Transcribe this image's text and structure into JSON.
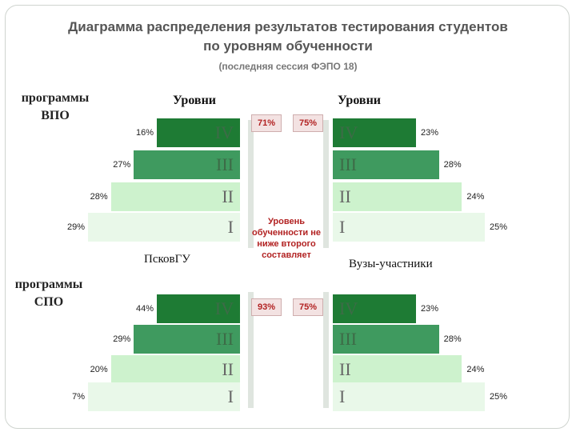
{
  "header": {
    "title_line1": "Диаграмма распределения результатов тестирования студентов",
    "title_line2": "по уровням обученности",
    "subtitle": "(последняя сессия ФЭПО 18)"
  },
  "sections": {
    "vpo_line1": "программы",
    "vpo_line2": "ВПО",
    "spo_line1": "программы",
    "spo_line2": "СПО"
  },
  "levels_header_left": "Уровни",
  "levels_header_right": "Уровни",
  "left_name": "ПсковГУ",
  "right_name": "Вузы-участники",
  "note": "Уровень обученности не ниже второго составляет",
  "badges": {
    "vpo_left": "71%",
    "vpo_right": "75%",
    "spo_left": "93%",
    "spo_right": "75%"
  },
  "colors": {
    "IV": "#1e7b34",
    "III": "#3f9a5f",
    "II": "#cdf2cd",
    "I": "#e9f8e9",
    "badge_text": "#b22222"
  },
  "chart_data": [
    {
      "type": "bar",
      "section": "программы ВПО",
      "categories": [
        "IV",
        "III",
        "II",
        "I"
      ],
      "series": [
        {
          "name": "ПсковГУ",
          "values": [
            16,
            27,
            28,
            29
          ]
        },
        {
          "name": "Вузы-участники",
          "values": [
            23,
            28,
            24,
            25
          ]
        }
      ]
    },
    {
      "type": "bar",
      "section": "программы СПО",
      "categories": [
        "IV",
        "III",
        "II",
        "I"
      ],
      "series": [
        {
          "name": "ПсковГУ",
          "values": [
            44,
            29,
            20,
            7
          ]
        },
        {
          "name": "Вузы-участники",
          "values": [
            23,
            28,
            24,
            25
          ]
        }
      ]
    }
  ]
}
